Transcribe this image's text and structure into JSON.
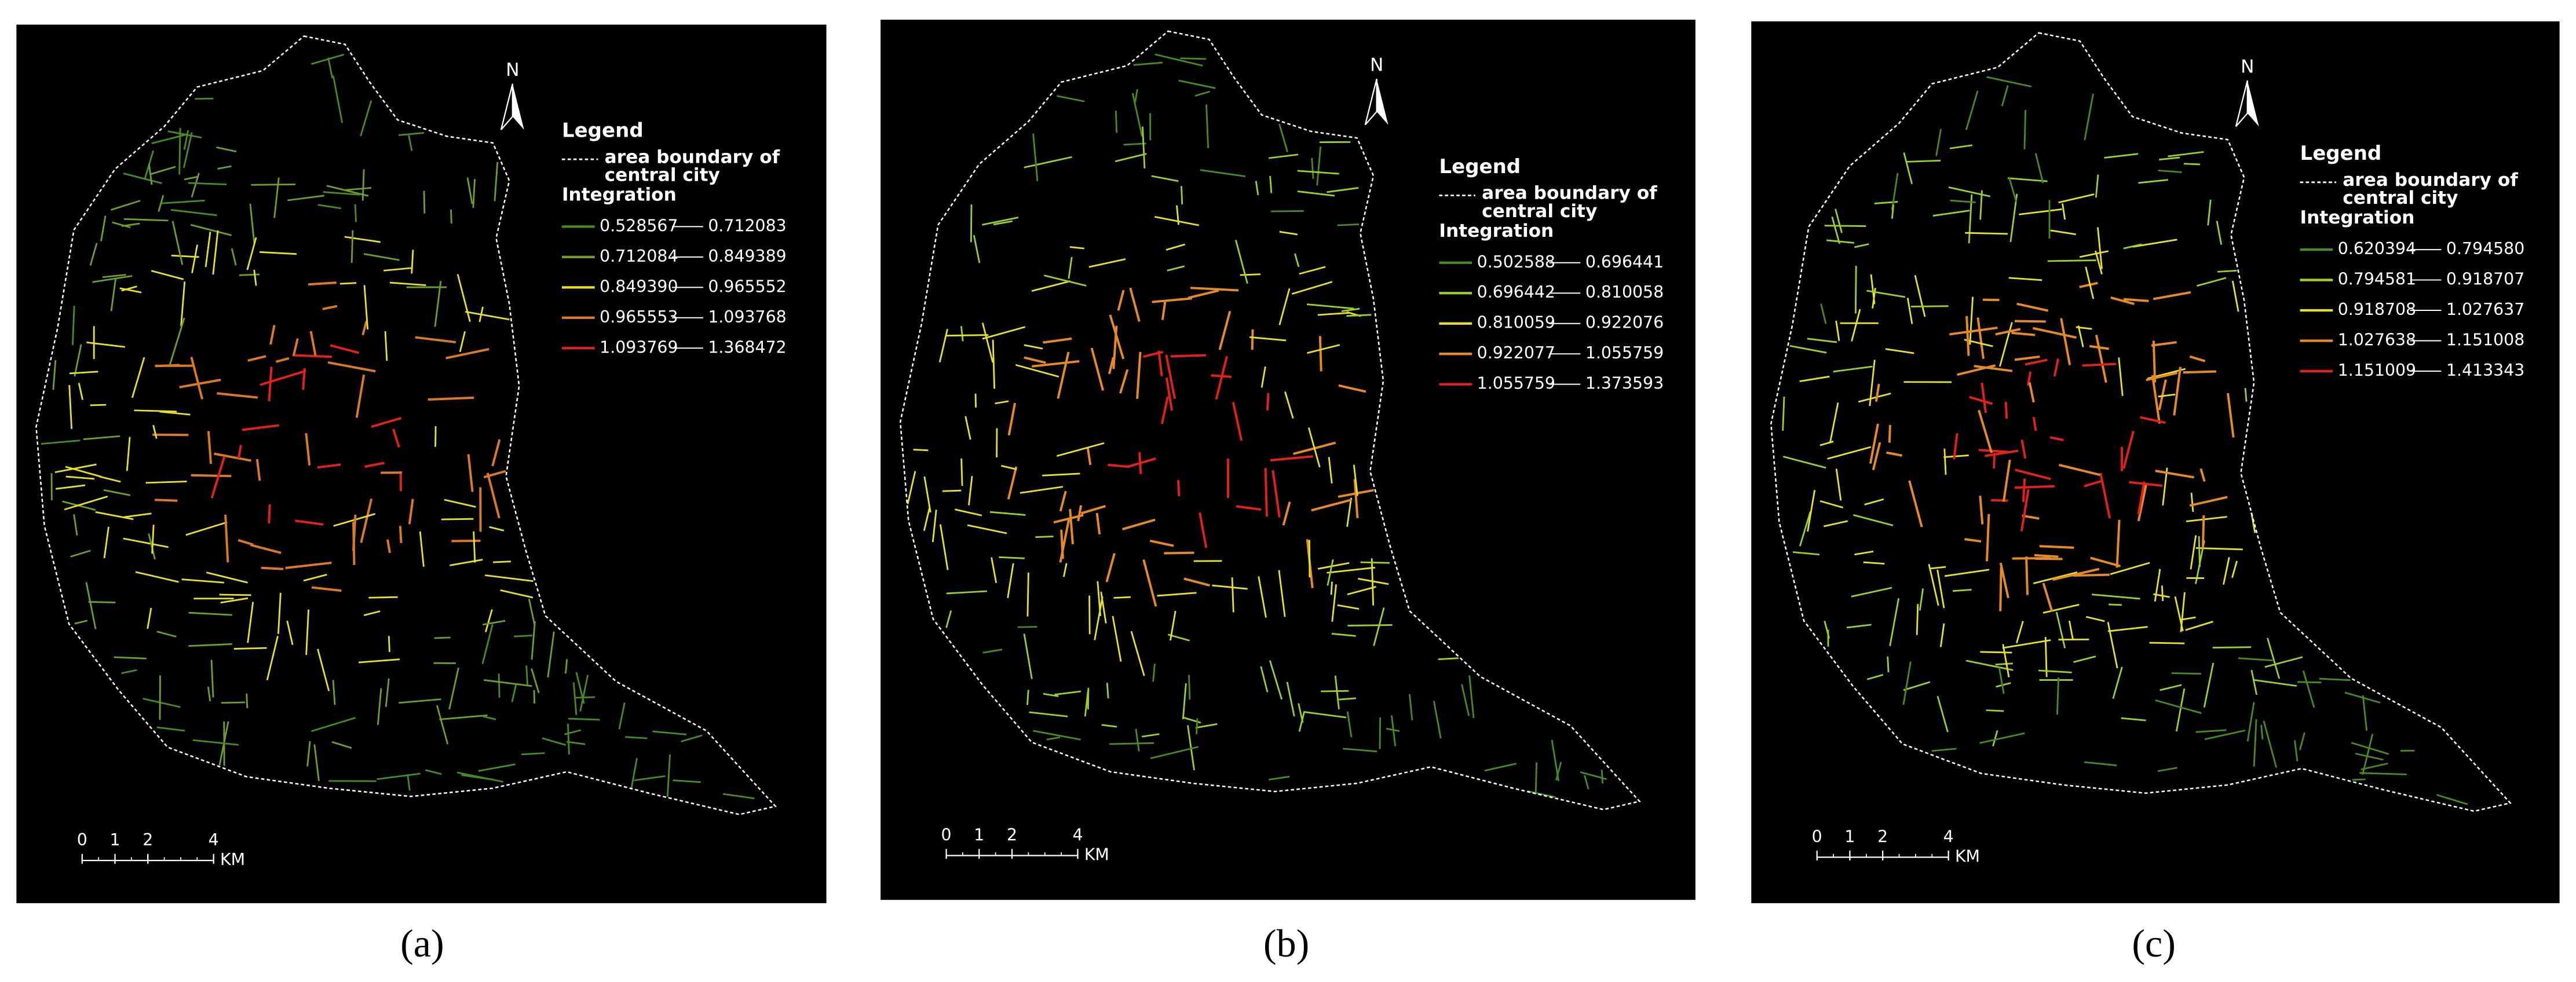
{
  "panels": [
    {
      "caption": "(a)",
      "north": "N",
      "legend": {
        "title": "Legend",
        "boundary_label": [
          "area boundary of",
          "central city"
        ],
        "field": "Integration",
        "classes": [
          {
            "color": "#4a8a24",
            "low": "0.528567",
            "high": "0.712083"
          },
          {
            "color": "#6f9f2a",
            "low": "0.712084",
            "high": "0.849389"
          },
          {
            "color": "#e3e12e",
            "low": "0.849390",
            "high": "0.965552"
          },
          {
            "color": "#d9792a",
            "low": "0.965553",
            "high": "1.093768"
          },
          {
            "color": "#e0221c",
            "low": "1.093769",
            "high": "1.368472"
          }
        ]
      },
      "scale_bar": {
        "ticks": [
          0,
          1,
          2,
          4
        ],
        "unit": "KM"
      }
    },
    {
      "caption": "(b)",
      "north": "N",
      "legend": {
        "title": "Legend",
        "boundary_label": [
          "area boundary of",
          "central city"
        ],
        "field": "Integration",
        "classes": [
          {
            "color": "#4a8a24",
            "low": "0.502588",
            "high": "0.696441"
          },
          {
            "color": "#9ccf2e",
            "low": "0.696442",
            "high": "0.810058"
          },
          {
            "color": "#e3e12e",
            "low": "0.810059",
            "high": "0.922076"
          },
          {
            "color": "#e58a2a",
            "low": "0.922077",
            "high": "1.055759"
          },
          {
            "color": "#e0221c",
            "low": "1.055759",
            "high": "1.373593"
          }
        ]
      },
      "scale_bar": {
        "ticks": [
          0,
          1,
          2,
          4
        ],
        "unit": "KM"
      }
    },
    {
      "caption": "(c)",
      "north": "N",
      "legend": {
        "title": "Legend",
        "boundary_label": [
          "area boundary of",
          "central city"
        ],
        "field": "Integration",
        "classes": [
          {
            "color": "#4a8a24",
            "low": "0.620394",
            "high": "0.794580"
          },
          {
            "color": "#9ccf2e",
            "low": "0.794581",
            "high": "0.918707"
          },
          {
            "color": "#e3e12e",
            "low": "0.918708",
            "high": "1.027637"
          },
          {
            "color": "#e58a2a",
            "low": "1.027638",
            "high": "1.151008"
          },
          {
            "color": "#e0221c",
            "low": "1.151009",
            "high": "1.413343"
          }
        ]
      },
      "scale_bar": {
        "ticks": [
          0,
          1,
          2,
          4
        ],
        "unit": "KM"
      }
    }
  ]
}
